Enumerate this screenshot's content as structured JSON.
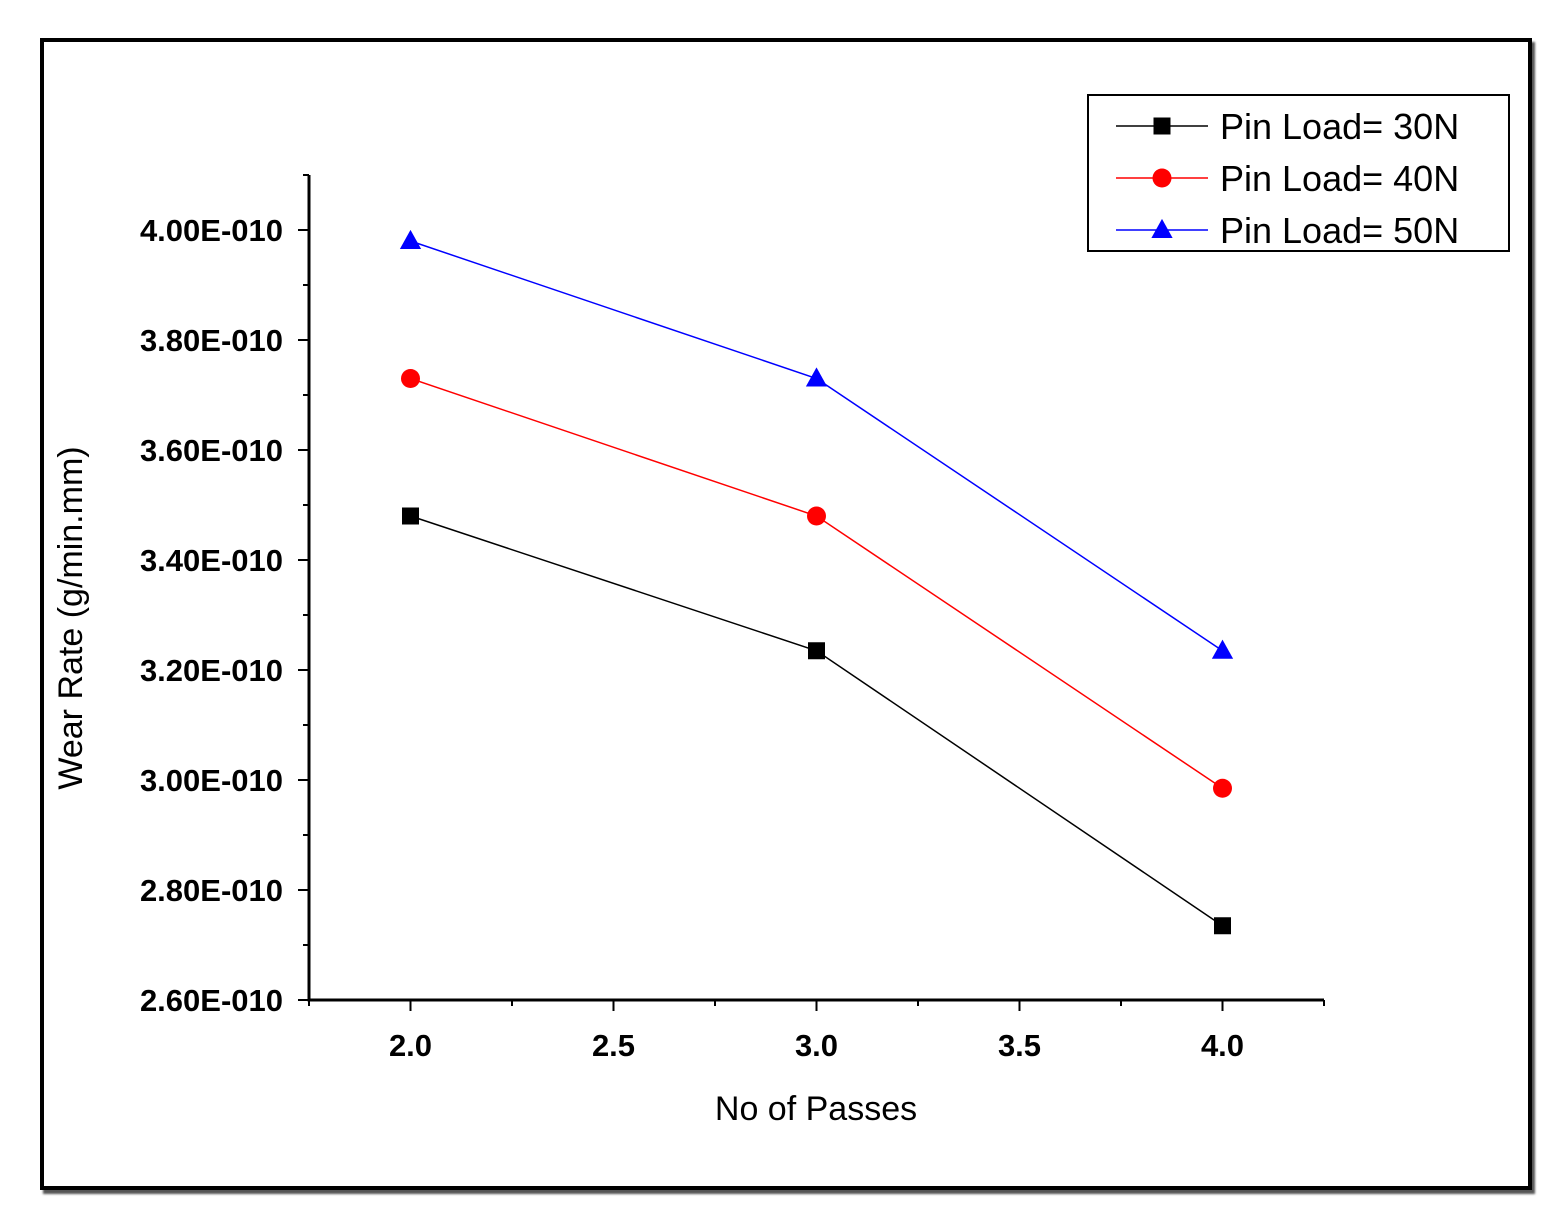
{
  "chart_data": {
    "type": "line",
    "title": "",
    "xlabel": "No of Passes",
    "ylabel": "Wear Rate (g/min.mm)",
    "x": [
      2.0,
      3.0,
      4.0
    ],
    "xlim": [
      1.75,
      4.25
    ],
    "ylim": [
      2.6e-10,
      4.1e-10
    ],
    "x_ticks": [
      "2.0",
      "2.5",
      "3.0",
      "3.5",
      "4.0"
    ],
    "y_ticks": [
      "2.60E-010",
      "2.80E-010",
      "3.00E-010",
      "3.20E-010",
      "3.40E-010",
      "3.60E-010",
      "3.80E-010",
      "4.00E-010"
    ],
    "legend_position": "top-right",
    "series": [
      {
        "name": "Pin Load= 30N",
        "color": "#000000",
        "marker": "square",
        "values": [
          3.48e-10,
          3.235e-10,
          2.735e-10
        ]
      },
      {
        "name": "Pin Load= 40N",
        "color": "#ff0000",
        "marker": "circle",
        "values": [
          3.73e-10,
          3.48e-10,
          2.985e-10
        ]
      },
      {
        "name": "Pin Load= 50N",
        "color": "#0000ff",
        "marker": "triangle",
        "values": [
          3.98e-10,
          3.73e-10,
          3.235e-10
        ]
      }
    ]
  }
}
